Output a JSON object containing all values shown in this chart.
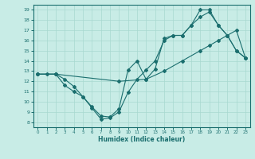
{
  "bg_color": "#c8ece6",
  "grid_color": "#a8d8d0",
  "line_color": "#1a6e6e",
  "xlabel": "Humidex (Indice chaleur)",
  "xlim": [
    -0.5,
    23.5
  ],
  "ylim": [
    7.5,
    19.5
  ],
  "xticks": [
    0,
    1,
    2,
    3,
    4,
    5,
    6,
    7,
    8,
    9,
    10,
    11,
    12,
    13,
    14,
    15,
    16,
    17,
    18,
    19,
    20,
    21,
    22,
    23
  ],
  "yticks": [
    8,
    9,
    10,
    11,
    12,
    13,
    14,
    15,
    16,
    17,
    18,
    19
  ],
  "line1_x": [
    0,
    1,
    2,
    3,
    4,
    5,
    6,
    7,
    8,
    9,
    10,
    11,
    12,
    13,
    14,
    15,
    16,
    17,
    18,
    19,
    20,
    21,
    22,
    23
  ],
  "line1_y": [
    12.7,
    12.7,
    12.7,
    11.6,
    11.0,
    10.5,
    9.4,
    8.3,
    8.4,
    9.0,
    10.9,
    12.2,
    13.1,
    14.0,
    16.0,
    16.5,
    16.5,
    17.5,
    19.0,
    19.0,
    17.5,
    16.5,
    15.0,
    14.3
  ],
  "line2_x": [
    0,
    2,
    9,
    12,
    14,
    16,
    18,
    19,
    20,
    21,
    22,
    23
  ],
  "line2_y": [
    12.7,
    12.7,
    12.0,
    12.2,
    13.0,
    14.0,
    15.0,
    15.5,
    16.0,
    16.5,
    17.0,
    14.3
  ],
  "line3_x": [
    0,
    2,
    3,
    4,
    5,
    6,
    7,
    8,
    9,
    10,
    11,
    12,
    13,
    14,
    15,
    16,
    17,
    18,
    19,
    20,
    21,
    22,
    23
  ],
  "line3_y": [
    12.7,
    12.7,
    12.2,
    11.5,
    10.5,
    9.5,
    8.6,
    8.5,
    9.3,
    13.1,
    14.0,
    12.2,
    13.2,
    16.2,
    16.5,
    16.5,
    17.5,
    18.3,
    18.8,
    17.5,
    16.5,
    15.0,
    14.3
  ]
}
